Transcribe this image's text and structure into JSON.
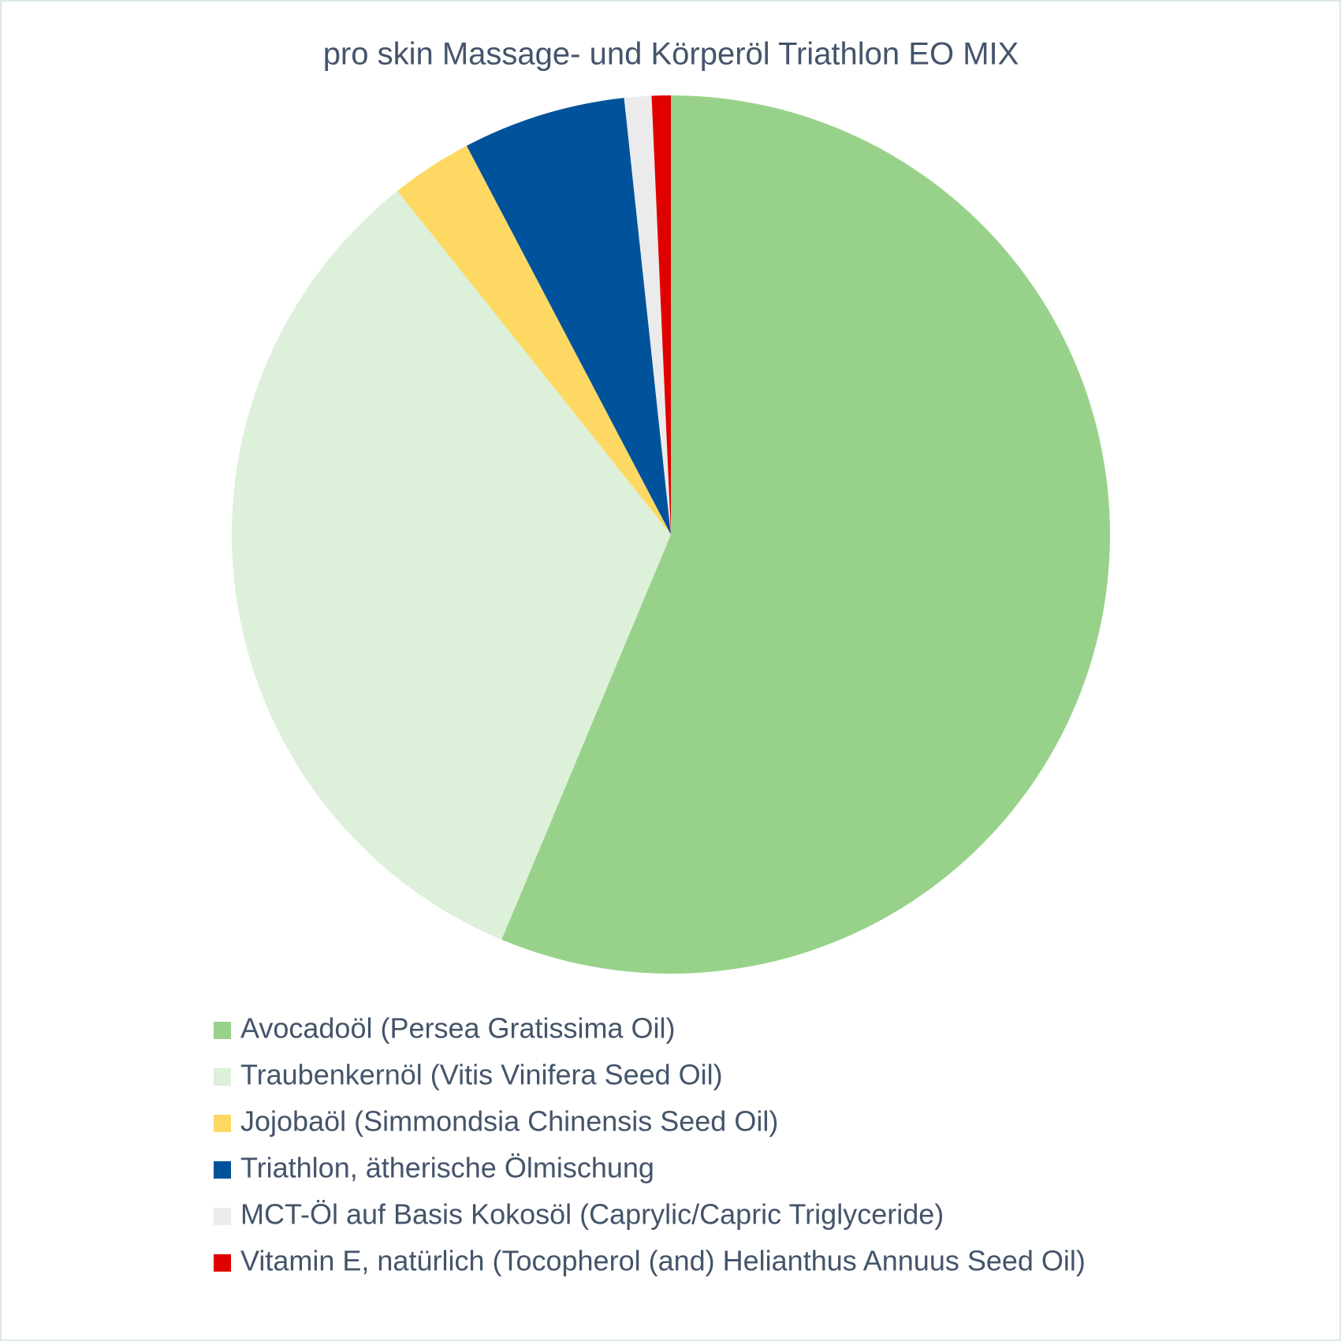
{
  "chart_data": {
    "type": "pie",
    "title": "pro skin Massage- und Körperöl Triathlon EO MIX",
    "categories": [
      "Avocadoöl (Persea Gratissima Oil)",
      "Traubenkernöl (Vitis Vinifera Seed Oil)",
      "Jojobaöl (Simmondsia Chinensis Seed Oil)",
      "Triathlon, ätherische Ölmischung",
      "MCT-Öl auf Basis Kokosöl (Caprylic/Capric Triglyceride)",
      "Vitamin E, natürlich (Tocopherol (and) Helianthus Annuus Seed Oil)"
    ],
    "values": [
      56.3,
      33,
      3,
      6,
      1,
      0.7
    ],
    "colors": [
      "#98d28a",
      "#ddf0da",
      "#fdd963",
      "#00539b",
      "#ebebeb",
      "#e00000"
    ],
    "legend": "bottom"
  }
}
